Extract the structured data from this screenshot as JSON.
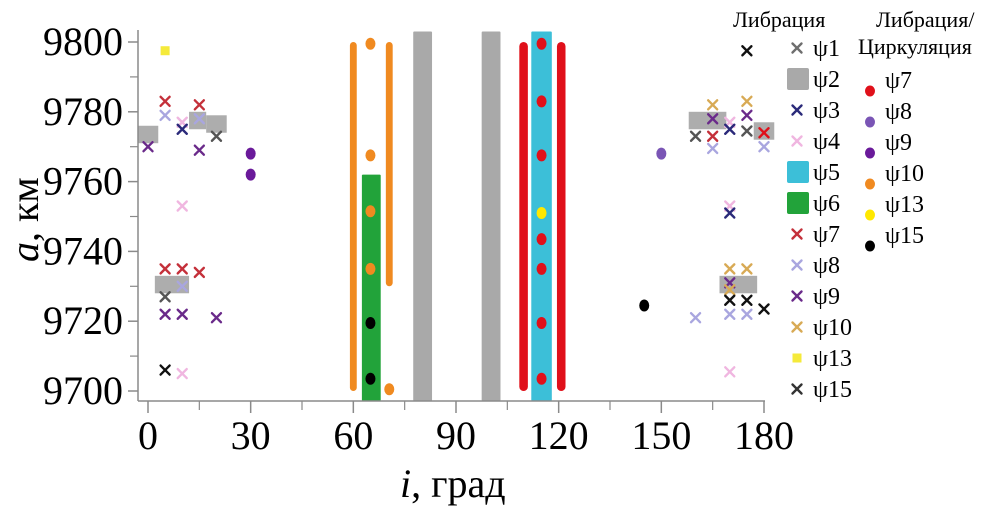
{
  "chart_data": {
    "type": "scatter",
    "title": "",
    "xlabel_var": "i",
    "xlabel_unit": ", град",
    "ylabel_var": "a",
    "ylabel_unit": ", км",
    "xlim": [
      0,
      180
    ],
    "ylim": [
      9700,
      9800
    ],
    "xticks": [
      0,
      30,
      60,
      90,
      120,
      150,
      180
    ],
    "xticks_minor": [
      15,
      45,
      75,
      105,
      135,
      165
    ],
    "yticks": [
      9700,
      9720,
      9740,
      9760,
      9780,
      9800
    ],
    "yticks_minor": [
      9710,
      9730,
      9750,
      9770,
      9790
    ],
    "grid": false,
    "legend_placement": "right",
    "legend": {
      "libration_header": "Либрация",
      "libcirc_header_line1": "Либрация/",
      "libcirc_header_line2": "Циркуляция",
      "libration": [
        {
          "id": "psi1",
          "label": "ψ1",
          "marker": "x",
          "color": "#6e6e6e"
        },
        {
          "id": "psi2",
          "label": "ψ2",
          "marker": "square",
          "color": "#a9a9a9"
        },
        {
          "id": "psi3",
          "label": "ψ3",
          "marker": "x",
          "color": "#2b2a7a"
        },
        {
          "id": "psi4",
          "label": "ψ4",
          "marker": "x",
          "color": "#f0b6e0"
        },
        {
          "id": "psi5",
          "label": "ψ5",
          "marker": "square",
          "color": "#3cbfd8"
        },
        {
          "id": "psi6",
          "label": "ψ6",
          "marker": "square",
          "color": "#22a33a"
        },
        {
          "id": "psi7",
          "label": "ψ7",
          "marker": "x",
          "color": "#c4303a"
        },
        {
          "id": "psi8",
          "label": "ψ8",
          "marker": "x",
          "color": "#a9a6df"
        },
        {
          "id": "psi9",
          "label": "ψ9",
          "marker": "x",
          "color": "#6a2a8a"
        },
        {
          "id": "psi10",
          "label": "ψ10",
          "marker": "x",
          "color": "#d8aa55"
        },
        {
          "id": "psi13",
          "label": "ψ13",
          "marker": "square-small",
          "color": "#f5ea3a"
        },
        {
          "id": "psi15",
          "label": "ψ15",
          "marker": "x",
          "color": "#333333"
        }
      ],
      "libcirc": [
        {
          "id": "psi7c",
          "label": "ψ7",
          "marker": "dot",
          "color": "#e0101a"
        },
        {
          "id": "psi8c",
          "label": "ψ8",
          "marker": "dot",
          "color": "#7a55b5"
        },
        {
          "id": "psi9c",
          "label": "ψ9",
          "marker": "dot",
          "color": "#6a1a9a"
        },
        {
          "id": "psi10c",
          "label": "ψ10",
          "marker": "dot",
          "color": "#f08a20"
        },
        {
          "id": "psi13c",
          "label": "ψ13",
          "marker": "dot",
          "color": "#ffe800"
        },
        {
          "id": "psi15c",
          "label": "ψ15",
          "marker": "dot",
          "color": "#000000"
        }
      ]
    },
    "bands": [
      {
        "series": "ψ10 (libration/circulation)",
        "color": "#f08a20",
        "i_range": [
          59,
          61
        ],
        "a_range": [
          9700,
          9800
        ]
      },
      {
        "series": "ψ10 (libration/circulation)",
        "color": "#f08a20",
        "i_range": [
          69.5,
          71.5
        ],
        "a_range": [
          9730,
          9800
        ]
      },
      {
        "series": "ψ6",
        "color": "#22a33a",
        "i_range": [
          62.5,
          68
        ],
        "a_range": [
          9697,
          9762
        ]
      },
      {
        "series": "ψ2",
        "color": "#a9a9a9",
        "i_range": [
          77.5,
          83
        ],
        "a_range": [
          9697,
          9803
        ]
      },
      {
        "series": "ψ2",
        "color": "#a9a9a9",
        "i_range": [
          97.5,
          103
        ],
        "a_range": [
          9697,
          9803
        ]
      },
      {
        "series": "ψ5",
        "color": "#3cbfd8",
        "i_range": [
          112,
          118
        ],
        "a_range": [
          9697,
          9803
        ]
      },
      {
        "series": "ψ7 (libration/circulation)",
        "color": "#e0101a",
        "i_range": [
          108.5,
          111
        ],
        "a_range": [
          9700,
          9800
        ]
      },
      {
        "series": "ψ7 (libration/circulation)",
        "color": "#e0101a",
        "i_range": [
          119.5,
          122
        ],
        "a_range": [
          9700,
          9800
        ]
      }
    ],
    "rects": [
      {
        "series": "ψ2",
        "color": "#a9a9a9",
        "i_range": [
          -3,
          3
        ],
        "a_range": [
          9771,
          9776
        ]
      },
      {
        "series": "ψ2",
        "color": "#a9a9a9",
        "i_range": [
          12,
          17
        ],
        "a_range": [
          9775,
          9780
        ]
      },
      {
        "series": "ψ2",
        "color": "#a9a9a9",
        "i_range": [
          17,
          23
        ],
        "a_range": [
          9774,
          9779
        ]
      },
      {
        "series": "ψ2",
        "color": "#a9a9a9",
        "i_range": [
          2,
          12
        ],
        "a_range": [
          9728,
          9733
        ]
      },
      {
        "series": "ψ2",
        "color": "#a9a9a9",
        "i_range": [
          158,
          169
        ],
        "a_range": [
          9775,
          9780
        ]
      },
      {
        "series": "ψ2",
        "color": "#a9a9a9",
        "i_range": [
          177,
          183
        ],
        "a_range": [
          9772,
          9777
        ]
      },
      {
        "series": "ψ2",
        "color": "#a9a9a9",
        "i_range": [
          167,
          178
        ],
        "a_range": [
          9728,
          9733
        ]
      }
    ],
    "points": [
      {
        "series": "ψ13",
        "marker": "square-small",
        "color": "#f5ea3a",
        "i": 5,
        "a": 9797.5
      },
      {
        "series": "ψ15",
        "marker": "x",
        "color": "#111111",
        "i": 175,
        "a": 9797.5
      },
      {
        "series": "ψ7",
        "marker": "x",
        "color": "#c4303a",
        "i": 5,
        "a": 9783
      },
      {
        "series": "ψ7",
        "marker": "x",
        "color": "#c4303a",
        "i": 15,
        "a": 9782
      },
      {
        "series": "ψ8",
        "marker": "x",
        "color": "#a9a6df",
        "i": 5,
        "a": 9779
      },
      {
        "series": "ψ8",
        "marker": "x",
        "color": "#a9a6df",
        "i": 15,
        "a": 9778
      },
      {
        "series": "ψ4",
        "marker": "x",
        "color": "#f0b6e0",
        "i": 10,
        "a": 9777
      },
      {
        "series": "ψ3",
        "marker": "x",
        "color": "#2b2a7a",
        "i": 10,
        "a": 9775
      },
      {
        "series": "ψ15",
        "marker": "x",
        "color": "#555555",
        "i": 20,
        "a": 9773
      },
      {
        "series": "ψ9",
        "marker": "x",
        "color": "#6a2a8a",
        "i": 0,
        "a": 9770
      },
      {
        "series": "ψ9",
        "marker": "x",
        "color": "#6a2a8a",
        "i": 15,
        "a": 9769
      },
      {
        "series": "ψ9c",
        "marker": "dot",
        "color": "#6a1a9a",
        "i": 30,
        "a": 9768
      },
      {
        "series": "ψ9c",
        "marker": "dot",
        "color": "#6a1a9a",
        "i": 30,
        "a": 9762
      },
      {
        "series": "ψ4",
        "marker": "x",
        "color": "#f0b6e0",
        "i": 10,
        "a": 9753
      },
      {
        "series": "ψ7",
        "marker": "x",
        "color": "#c4303a",
        "i": 5,
        "a": 9735
      },
      {
        "series": "ψ7",
        "marker": "x",
        "color": "#c4303a",
        "i": 10,
        "a": 9735
      },
      {
        "series": "ψ7",
        "marker": "x",
        "color": "#c4303a",
        "i": 15,
        "a": 9734
      },
      {
        "series": "ψ8",
        "marker": "x",
        "color": "#a9a6df",
        "i": 10,
        "a": 9730
      },
      {
        "series": "ψ15",
        "marker": "x",
        "color": "#555555",
        "i": 5,
        "a": 9727
      },
      {
        "series": "ψ9",
        "marker": "x",
        "color": "#6a2a8a",
        "i": 5,
        "a": 9722
      },
      {
        "series": "ψ9",
        "marker": "x",
        "color": "#6a2a8a",
        "i": 10,
        "a": 9722
      },
      {
        "series": "ψ9",
        "marker": "x",
        "color": "#6a2a8a",
        "i": 20,
        "a": 9721
      },
      {
        "series": "ψ15",
        "marker": "x",
        "color": "#111111",
        "i": 5,
        "a": 9706
      },
      {
        "series": "ψ4",
        "marker": "x",
        "color": "#f0b6e0",
        "i": 10,
        "a": 9705
      },
      {
        "series": "ψ10c",
        "marker": "dot",
        "color": "#f08a20",
        "i": 65,
        "a": 9799.5
      },
      {
        "series": "ψ10c",
        "marker": "dot",
        "color": "#f08a20",
        "i": 65,
        "a": 9767.5
      },
      {
        "series": "ψ10c",
        "marker": "dot",
        "color": "#f08a20",
        "i": 65,
        "a": 9751.5
      },
      {
        "series": "ψ10c",
        "marker": "dot",
        "color": "#f08a20",
        "i": 65,
        "a": 9735
      },
      {
        "series": "ψ15c",
        "marker": "dot",
        "color": "#000000",
        "i": 65,
        "a": 9719.5
      },
      {
        "series": "ψ15c",
        "marker": "dot",
        "color": "#000000",
        "i": 65,
        "a": 9703.5
      },
      {
        "series": "ψ10c",
        "marker": "dot",
        "color": "#f08a20",
        "i": 70.5,
        "a": 9700.5
      },
      {
        "series": "ψ7c",
        "marker": "dot",
        "color": "#e0101a",
        "i": 115,
        "a": 9799.5
      },
      {
        "series": "ψ7c",
        "marker": "dot",
        "color": "#e0101a",
        "i": 115,
        "a": 9783
      },
      {
        "series": "ψ7c",
        "marker": "dot",
        "color": "#e0101a",
        "i": 115,
        "a": 9767.5
      },
      {
        "series": "ψ13c",
        "marker": "dot",
        "color": "#ffe800",
        "i": 115,
        "a": 9751
      },
      {
        "series": "ψ7c",
        "marker": "dot",
        "color": "#e0101a",
        "i": 115,
        "a": 9743.5
      },
      {
        "series": "ψ7c",
        "marker": "dot",
        "color": "#e0101a",
        "i": 115,
        "a": 9735
      },
      {
        "series": "ψ7c",
        "marker": "dot",
        "color": "#e0101a",
        "i": 115,
        "a": 9719.5
      },
      {
        "series": "ψ7c",
        "marker": "dot",
        "color": "#e0101a",
        "i": 115,
        "a": 9703.5
      },
      {
        "series": "ψ8c",
        "marker": "dot",
        "color": "#7a55b5",
        "i": 150,
        "a": 9768
      },
      {
        "series": "ψ15c",
        "marker": "dot",
        "color": "#000000",
        "i": 145,
        "a": 9724.5
      },
      {
        "series": "ψ10",
        "marker": "x",
        "color": "#d8aa55",
        "i": 165,
        "a": 9782
      },
      {
        "series": "ψ10",
        "marker": "x",
        "color": "#d8aa55",
        "i": 175,
        "a": 9783
      },
      {
        "series": "ψ9",
        "marker": "x",
        "color": "#6a2a8a",
        "i": 165,
        "a": 9778
      },
      {
        "series": "ψ9",
        "marker": "x",
        "color": "#6a2a8a",
        "i": 175,
        "a": 9779
      },
      {
        "series": "ψ4",
        "marker": "x",
        "color": "#f0b6e0",
        "i": 170,
        "a": 9777
      },
      {
        "series": "ψ3",
        "marker": "x",
        "color": "#2b2a7a",
        "i": 170,
        "a": 9775
      },
      {
        "series": "ψ15",
        "marker": "x",
        "color": "#555555",
        "i": 175,
        "a": 9774.5
      },
      {
        "series": "ψ15",
        "marker": "x",
        "color": "#555555",
        "i": 160,
        "a": 9773
      },
      {
        "series": "ψ7",
        "marker": "x",
        "color": "#c4303a",
        "i": 165,
        "a": 9773
      },
      {
        "series": "ψ7",
        "marker": "x",
        "color": "#e0101a",
        "i": 180,
        "a": 9774
      },
      {
        "series": "ψ8",
        "marker": "x",
        "color": "#a9a6df",
        "i": 165,
        "a": 9769.5
      },
      {
        "series": "ψ8",
        "marker": "x",
        "color": "#a9a6df",
        "i": 180,
        "a": 9770
      },
      {
        "series": "ψ4",
        "marker": "x",
        "color": "#f0b6e0",
        "i": 170,
        "a": 9753
      },
      {
        "series": "ψ3",
        "marker": "x",
        "color": "#2b2a7a",
        "i": 170,
        "a": 9751
      },
      {
        "series": "ψ10",
        "marker": "x",
        "color": "#d8aa55",
        "i": 170,
        "a": 9735
      },
      {
        "series": "ψ10",
        "marker": "x",
        "color": "#d8aa55",
        "i": 175,
        "a": 9735
      },
      {
        "series": "ψ9",
        "marker": "x",
        "color": "#6a2a8a",
        "i": 170,
        "a": 9731
      },
      {
        "series": "ψ10",
        "marker": "x",
        "color": "#d8aa55",
        "i": 170,
        "a": 9729
      },
      {
        "series": "ψ15",
        "marker": "x",
        "color": "#111111",
        "i": 170,
        "a": 9726
      },
      {
        "series": "ψ15",
        "marker": "x",
        "color": "#111111",
        "i": 175,
        "a": 9726
      },
      {
        "series": "ψ15",
        "marker": "x",
        "color": "#111111",
        "i": 180,
        "a": 9723.5
      },
      {
        "series": "ψ8",
        "marker": "x",
        "color": "#a9a6df",
        "i": 160,
        "a": 9721
      },
      {
        "series": "ψ8",
        "marker": "x",
        "color": "#a9a6df",
        "i": 170,
        "a": 9722
      },
      {
        "series": "ψ8",
        "marker": "x",
        "color": "#a9a6df",
        "i": 175,
        "a": 9722
      },
      {
        "series": "ψ4",
        "marker": "x",
        "color": "#f0b6e0",
        "i": 170,
        "a": 9705.5
      }
    ],
    "legend_extra_marks": [
      {
        "series": "ψ15",
        "marker": "x",
        "color": "#111111",
        "i": 175,
        "a": 9797.5
      }
    ]
  }
}
